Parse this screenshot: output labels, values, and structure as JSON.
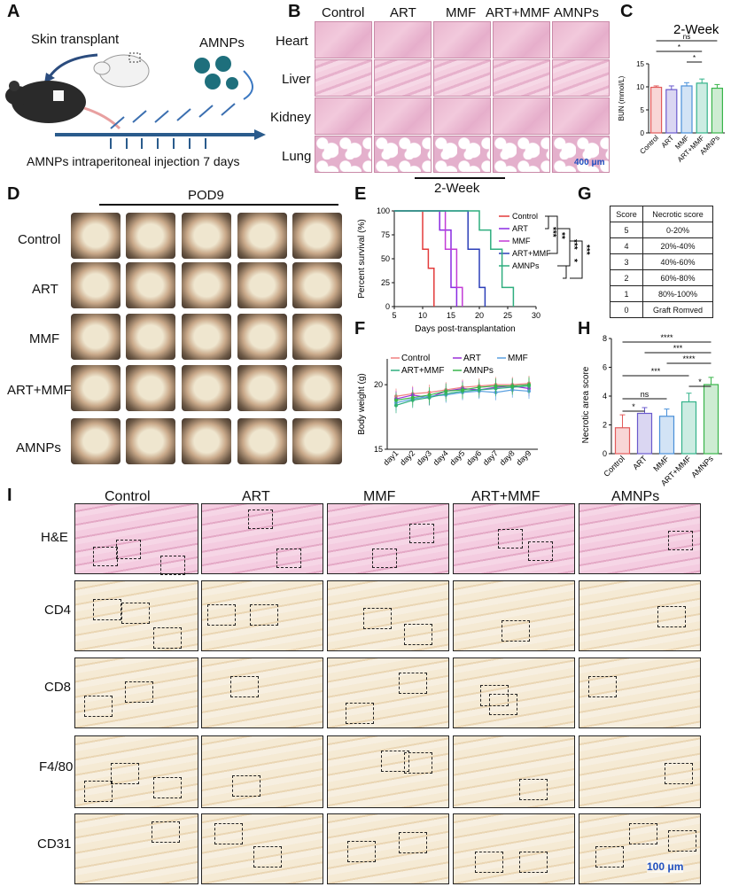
{
  "panels": {
    "A": "A",
    "B": "B",
    "C": "C",
    "D": "D",
    "E": "E",
    "F": "F",
    "G": "G",
    "H": "H",
    "I": "I"
  },
  "panelA": {
    "skin_transplant": "Skin transplant",
    "amnps": "AMNPs",
    "injection": "AMNPs intraperitoneal injection 7 days"
  },
  "panelB": {
    "columns": [
      "Control",
      "ART",
      "MMF",
      "ART+MMF",
      "AMNPs"
    ],
    "rows": [
      "Heart",
      "Liver",
      "Kidney",
      "Lung"
    ],
    "scale": "400 μm",
    "period": "2-Week"
  },
  "panelC": {
    "chart_data": {
      "type": "bar",
      "title": "2-Week",
      "ylabel": "BUN (mmol/L)",
      "categories": [
        "Control",
        "ART",
        "MMF",
        "ART+MMF",
        "AMNPs"
      ],
      "values": [
        9.9,
        9.4,
        10.2,
        10.8,
        9.7
      ],
      "errors": [
        0.3,
        0.8,
        0.7,
        0.9,
        0.8
      ],
      "ylim": [
        0,
        15
      ],
      "yticks": [
        0,
        5,
        10,
        15
      ],
      "significance": [
        {
          "from": "Control",
          "to": "AMNPs",
          "label": "ns"
        },
        {
          "from": "Control",
          "to": "ART+MMF",
          "label": "*"
        },
        {
          "from": "MMF",
          "to": "ART+MMF",
          "label": "*"
        }
      ],
      "colors": [
        "#e25b5b",
        "#6a5acd",
        "#4a90d9",
        "#34b38a",
        "#39b54a"
      ]
    }
  },
  "panelD": {
    "title": "POD9",
    "rows": [
      "Control",
      "ART",
      "MMF",
      "ART+MMF",
      "AMNPs"
    ]
  },
  "panelE": {
    "chart_data": {
      "type": "line",
      "xlabel": "Days post-transplantation",
      "ylabel": "Percent survival (%)",
      "xlim": [
        5,
        30
      ],
      "ylim": [
        0,
        100
      ],
      "xticks": [
        5,
        10,
        15,
        20,
        25,
        30
      ],
      "yticks": [
        0,
        25,
        50,
        75,
        100
      ],
      "series": [
        {
          "name": "Control",
          "color": "#e33b3b",
          "points": [
            [
              5,
              100
            ],
            [
              10,
              100
            ],
            [
              10,
              60
            ],
            [
              11,
              60
            ],
            [
              11,
              40
            ],
            [
              12,
              40
            ],
            [
              12,
              0
            ]
          ]
        },
        {
          "name": "ART",
          "color": "#8a2be2",
          "points": [
            [
              5,
              100
            ],
            [
              13,
              100
            ],
            [
              13,
              80
            ],
            [
              15,
              80
            ],
            [
              15,
              20
            ],
            [
              16,
              20
            ],
            [
              16,
              0
            ]
          ]
        },
        {
          "name": "MMF",
          "color": "#c23bd6",
          "points": [
            [
              5,
              100
            ],
            [
              14,
              100
            ],
            [
              14,
              60
            ],
            [
              16,
              60
            ],
            [
              16,
              20
            ],
            [
              17,
              20
            ],
            [
              17,
              0
            ]
          ]
        },
        {
          "name": "ART+MMF",
          "color": "#2c3fb8",
          "points": [
            [
              5,
              100
            ],
            [
              18,
              100
            ],
            [
              18,
              60
            ],
            [
              20,
              60
            ],
            [
              20,
              20
            ],
            [
              21,
              20
            ],
            [
              21,
              0
            ]
          ]
        },
        {
          "name": "AMNPs",
          "color": "#2fae7f",
          "points": [
            [
              5,
              100
            ],
            [
              20,
              100
            ],
            [
              20,
              80
            ],
            [
              22,
              80
            ],
            [
              22,
              60
            ],
            [
              24,
              60
            ],
            [
              24,
              20
            ],
            [
              26,
              20
            ],
            [
              26,
              0
            ]
          ]
        }
      ],
      "significance": [
        "***",
        "**",
        "***",
        "***",
        "*"
      ]
    }
  },
  "panelF": {
    "chart_data": {
      "type": "line",
      "xlabel": "",
      "ylabel": "Body weight (g)",
      "categories": [
        "day1",
        "day2",
        "day3",
        "day4",
        "day5",
        "day6",
        "day7",
        "day8",
        "day9"
      ],
      "ylim": [
        15,
        22
      ],
      "yticks": [
        15,
        20
      ],
      "series": [
        {
          "name": "Control",
          "color": "#f08080",
          "values": [
            19.1,
            19.3,
            19.4,
            19.6,
            19.8,
            19.9,
            20.0,
            20.0,
            20.1
          ]
        },
        {
          "name": "ART",
          "color": "#9b30d9",
          "values": [
            18.9,
            19.2,
            19.0,
            19.5,
            19.7,
            19.6,
            19.8,
            19.9,
            19.7
          ]
        },
        {
          "name": "MMF",
          "color": "#5aa0e0",
          "values": [
            18.6,
            18.9,
            19.1,
            19.2,
            19.4,
            19.5,
            19.4,
            19.6,
            19.5
          ]
        },
        {
          "name": "ART+MMF",
          "color": "#2fae7f",
          "values": [
            18.4,
            18.8,
            19.0,
            19.3,
            19.5,
            19.6,
            19.7,
            19.8,
            19.9
          ]
        },
        {
          "name": "AMNPs",
          "color": "#39b54a",
          "values": [
            18.8,
            19.0,
            19.2,
            19.5,
            19.6,
            19.8,
            19.9,
            19.9,
            20.0
          ]
        }
      ]
    }
  },
  "panelG": {
    "header": [
      "Score",
      "Necrotic score"
    ],
    "rows": [
      [
        "5",
        "0-20%"
      ],
      [
        "4",
        "20%-40%"
      ],
      [
        "3",
        "40%-60%"
      ],
      [
        "2",
        "60%-80%"
      ],
      [
        "1",
        "80%-100%"
      ],
      [
        "0",
        "Graft Romved"
      ]
    ]
  },
  "panelH": {
    "chart_data": {
      "type": "bar",
      "ylabel": "Necrotic area score",
      "categories": [
        "Control",
        "ART",
        "MMF",
        "ART+MMF",
        "AMNPs"
      ],
      "values": [
        1.8,
        2.8,
        2.6,
        3.6,
        4.8
      ],
      "errors": [
        0.9,
        0.4,
        0.5,
        0.6,
        0.5
      ],
      "ylim": [
        0,
        8
      ],
      "yticks": [
        0,
        2,
        4,
        6,
        8
      ],
      "significance": [
        {
          "from": "Control",
          "to": "AMNPs",
          "label": "****"
        },
        {
          "from": "ART",
          "to": "AMNPs",
          "label": "***"
        },
        {
          "from": "MMF",
          "to": "AMNPs",
          "label": "****"
        },
        {
          "from": "Control",
          "to": "ART+MMF",
          "label": "***"
        },
        {
          "from": "ART+MMF",
          "to": "AMNPs",
          "label": "*"
        },
        {
          "from": "Control",
          "to": "MMF",
          "label": "ns"
        },
        {
          "from": "Control",
          "to": "ART",
          "label": "*"
        }
      ],
      "colors": [
        "#e25b5b",
        "#6a5acd",
        "#4a90d9",
        "#34b38a",
        "#39b54a"
      ]
    }
  },
  "panelI": {
    "columns": [
      "Control",
      "ART",
      "MMF",
      "ART+MMF",
      "AMNPs"
    ],
    "rows": [
      "H&E",
      "CD4",
      "CD8",
      "F4/80",
      "CD31"
    ],
    "scale": "100 μm"
  }
}
